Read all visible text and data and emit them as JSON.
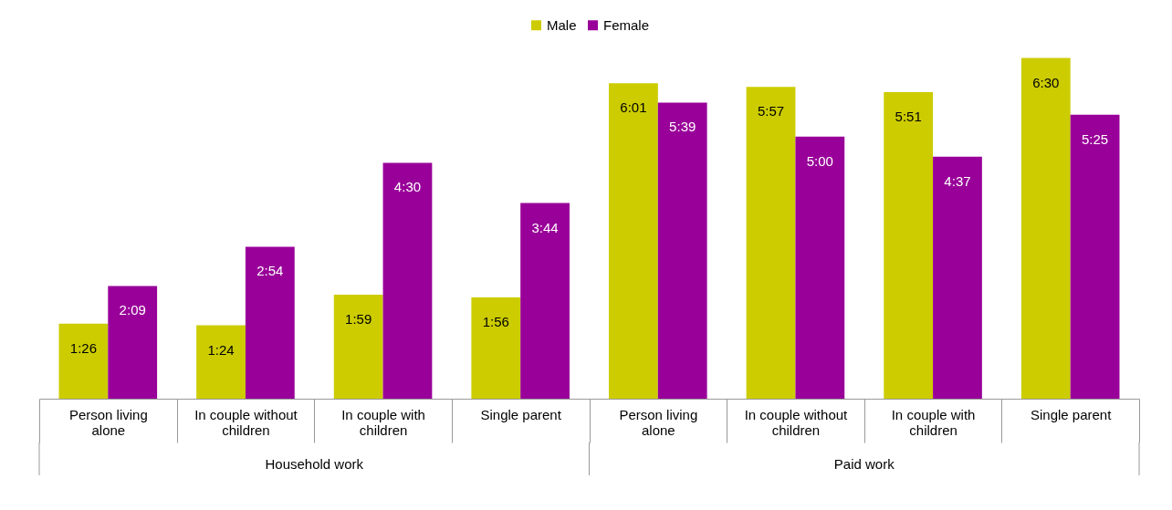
{
  "chart_data": {
    "type": "bar",
    "categories": [
      "Person living alone",
      "In couple without children",
      "In couple with children",
      "Single parent",
      "Person living alone",
      "In couple without children",
      "In couple with children",
      "Single parent"
    ],
    "series": [
      {
        "name": "Male",
        "color": "#cccc00",
        "values": [
          86,
          84,
          119,
          116,
          361,
          357,
          351,
          390
        ],
        "value_labels": [
          "1:26",
          "1:24",
          "1:59",
          "1:56",
          "6:01",
          "5:57",
          "5:51",
          "6:30"
        ]
      },
      {
        "name": "Female",
        "color": "#990099",
        "values": [
          129,
          174,
          270,
          224,
          339,
          300,
          277,
          325
        ],
        "value_labels": [
          "2:09",
          "2:54",
          "4:30",
          "3:44",
          "5:39",
          "5:00",
          "4:37",
          "5:25"
        ]
      }
    ],
    "annotations": [
      "Household work",
      "Paid work"
    ],
    "legend": "top"
  }
}
